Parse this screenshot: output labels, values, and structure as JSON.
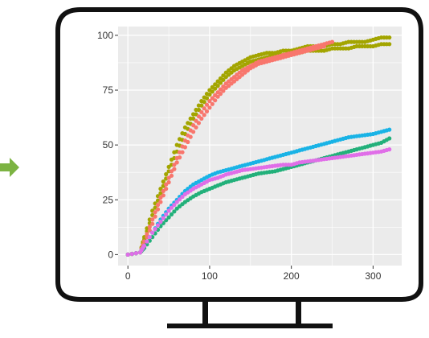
{
  "colors": {
    "monitor_outline": "#111111",
    "panel": "#ebebeb",
    "grid": "#ffffff",
    "arrow": "#7cb342",
    "olive": "#a3a500",
    "salmon": "#f8766d",
    "blue": "#19b3e6",
    "green": "#22b07a",
    "magenta": "#e06ee8"
  },
  "icons": {
    "arrow": "arrow-right-icon",
    "monitor": "monitor-icon"
  },
  "chart_data": {
    "type": "scatter",
    "title": "",
    "xlabel": "",
    "ylabel": "",
    "xlim": [
      -12,
      335
    ],
    "ylim": [
      -5,
      104
    ],
    "x_ticks": [
      0,
      100,
      200,
      300
    ],
    "y_ticks": [
      0,
      25,
      50,
      75,
      100
    ],
    "x_tick_labels": [
      "0",
      "100",
      "200",
      "300"
    ],
    "y_tick_labels": [
      "0",
      "25",
      "50",
      "75",
      "100"
    ],
    "grid": true,
    "legend": "none",
    "series": [
      {
        "color": "#a3a500",
        "points": [
          [
            0,
            0
          ],
          [
            15,
            1
          ],
          [
            20,
            8
          ],
          [
            30,
            20
          ],
          [
            40,
            30
          ],
          [
            50,
            40
          ],
          [
            60,
            50
          ],
          [
            70,
            58
          ],
          [
            80,
            64
          ],
          [
            90,
            70
          ],
          [
            100,
            75
          ],
          [
            110,
            79
          ],
          [
            120,
            83
          ],
          [
            130,
            86
          ],
          [
            140,
            88
          ],
          [
            150,
            90
          ],
          [
            160,
            91
          ],
          [
            170,
            92
          ],
          [
            180,
            92
          ],
          [
            190,
            93
          ],
          [
            200,
            93
          ],
          [
            210,
            94
          ],
          [
            220,
            95
          ],
          [
            230,
            95
          ],
          [
            240,
            95
          ],
          [
            250,
            96
          ],
          [
            260,
            96
          ],
          [
            270,
            97
          ],
          [
            280,
            97
          ],
          [
            290,
            97
          ],
          [
            300,
            98
          ],
          [
            310,
            99
          ],
          [
            320,
            99
          ]
        ]
      },
      {
        "color": "#a3a500",
        "points": [
          [
            0,
            0
          ],
          [
            15,
            1
          ],
          [
            20,
            7
          ],
          [
            30,
            18
          ],
          [
            40,
            28
          ],
          [
            50,
            38
          ],
          [
            60,
            47
          ],
          [
            70,
            55
          ],
          [
            80,
            62
          ],
          [
            90,
            68
          ],
          [
            100,
            73
          ],
          [
            110,
            77
          ],
          [
            120,
            81
          ],
          [
            130,
            84
          ],
          [
            140,
            86
          ],
          [
            150,
            88
          ],
          [
            160,
            89
          ],
          [
            170,
            90
          ],
          [
            180,
            91
          ],
          [
            190,
            91
          ],
          [
            200,
            92
          ],
          [
            210,
            92
          ],
          [
            220,
            93
          ],
          [
            230,
            93
          ],
          [
            240,
            93
          ],
          [
            250,
            94
          ],
          [
            260,
            94
          ],
          [
            270,
            94
          ],
          [
            280,
            95
          ],
          [
            290,
            95
          ],
          [
            300,
            95
          ],
          [
            310,
            96
          ],
          [
            320,
            96
          ]
        ]
      },
      {
        "color": "#f8766d",
        "points": [
          [
            0,
            0
          ],
          [
            15,
            1
          ],
          [
            20,
            6
          ],
          [
            30,
            16
          ],
          [
            40,
            26
          ],
          [
            50,
            35
          ],
          [
            60,
            44
          ],
          [
            70,
            52
          ],
          [
            80,
            59
          ],
          [
            90,
            65
          ],
          [
            100,
            70
          ],
          [
            110,
            74
          ],
          [
            120,
            78
          ],
          [
            130,
            81
          ],
          [
            140,
            84
          ],
          [
            150,
            86
          ],
          [
            160,
            88
          ],
          [
            170,
            89
          ],
          [
            180,
            90
          ],
          [
            190,
            91
          ],
          [
            200,
            92
          ],
          [
            210,
            93
          ],
          [
            220,
            94
          ],
          [
            230,
            95
          ],
          [
            240,
            96
          ],
          [
            250,
            97
          ]
        ]
      },
      {
        "color": "#f8766d",
        "points": [
          [
            0,
            0
          ],
          [
            15,
            1
          ],
          [
            20,
            5
          ],
          [
            30,
            14
          ],
          [
            40,
            24
          ],
          [
            50,
            33
          ],
          [
            60,
            42
          ],
          [
            70,
            49
          ],
          [
            80,
            56
          ],
          [
            90,
            62
          ],
          [
            100,
            67
          ],
          [
            110,
            72
          ],
          [
            120,
            76
          ],
          [
            130,
            79
          ],
          [
            140,
            82
          ],
          [
            150,
            85
          ],
          [
            160,
            87
          ],
          [
            170,
            88
          ],
          [
            180,
            89
          ],
          [
            190,
            90
          ],
          [
            200,
            91
          ],
          [
            210,
            92
          ],
          [
            220,
            93
          ],
          [
            230,
            94
          ],
          [
            240,
            95
          ]
        ]
      },
      {
        "color": "#19b3e6",
        "points": [
          [
            0,
            0
          ],
          [
            15,
            1
          ],
          [
            20,
            4
          ],
          [
            30,
            10
          ],
          [
            40,
            16
          ],
          [
            50,
            21
          ],
          [
            60,
            25
          ],
          [
            70,
            29
          ],
          [
            80,
            32
          ],
          [
            90,
            34
          ],
          [
            100,
            36
          ],
          [
            110,
            37.5
          ],
          [
            120,
            38.5
          ],
          [
            130,
            39.5
          ],
          [
            140,
            40.5
          ],
          [
            150,
            41.5
          ],
          [
            160,
            42.5
          ],
          [
            170,
            43.5
          ],
          [
            180,
            44.5
          ],
          [
            190,
            45.5
          ],
          [
            200,
            46.5
          ],
          [
            210,
            47.5
          ],
          [
            220,
            48.5
          ],
          [
            230,
            49.5
          ],
          [
            240,
            50.5
          ],
          [
            250,
            51.5
          ],
          [
            260,
            52.5
          ],
          [
            270,
            53.5
          ],
          [
            280,
            54
          ],
          [
            290,
            54.5
          ],
          [
            300,
            55
          ],
          [
            310,
            56
          ],
          [
            320,
            57
          ]
        ]
      },
      {
        "color": "#22b07a",
        "points": [
          [
            0,
            0
          ],
          [
            15,
            1
          ],
          [
            20,
            3
          ],
          [
            30,
            8
          ],
          [
            40,
            13
          ],
          [
            50,
            17
          ],
          [
            60,
            21
          ],
          [
            70,
            24
          ],
          [
            80,
            26.5
          ],
          [
            90,
            28.5
          ],
          [
            100,
            30
          ],
          [
            110,
            31.5
          ],
          [
            120,
            33
          ],
          [
            130,
            34
          ],
          [
            140,
            35
          ],
          [
            150,
            36
          ],
          [
            160,
            37
          ],
          [
            170,
            37.5
          ],
          [
            180,
            38
          ],
          [
            190,
            39
          ],
          [
            200,
            40
          ],
          [
            210,
            41
          ],
          [
            220,
            42
          ],
          [
            230,
            43
          ],
          [
            240,
            44
          ],
          [
            250,
            45
          ],
          [
            260,
            46
          ],
          [
            270,
            47
          ],
          [
            280,
            48
          ],
          [
            290,
            49
          ],
          [
            300,
            50
          ],
          [
            310,
            51
          ],
          [
            320,
            53
          ]
        ]
      },
      {
        "color": "#e06ee8",
        "points": [
          [
            0,
            0
          ],
          [
            15,
            1
          ],
          [
            20,
            4
          ],
          [
            30,
            10
          ],
          [
            40,
            15
          ],
          [
            50,
            20
          ],
          [
            60,
            24
          ],
          [
            70,
            27.5
          ],
          [
            80,
            30
          ],
          [
            90,
            32
          ],
          [
            100,
            34
          ],
          [
            110,
            35
          ],
          [
            120,
            36.5
          ],
          [
            130,
            37.5
          ],
          [
            140,
            38.5
          ],
          [
            150,
            39
          ],
          [
            160,
            39.5
          ],
          [
            170,
            40
          ],
          [
            180,
            40.5
          ],
          [
            190,
            41
          ],
          [
            200,
            41
          ],
          [
            210,
            42
          ],
          [
            220,
            42.5
          ],
          [
            230,
            43
          ],
          [
            240,
            43.5
          ],
          [
            250,
            44
          ],
          [
            260,
            44.5
          ],
          [
            270,
            45
          ],
          [
            280,
            45.5
          ],
          [
            290,
            46
          ],
          [
            300,
            46.5
          ],
          [
            310,
            47
          ],
          [
            320,
            48
          ]
        ]
      }
    ]
  }
}
